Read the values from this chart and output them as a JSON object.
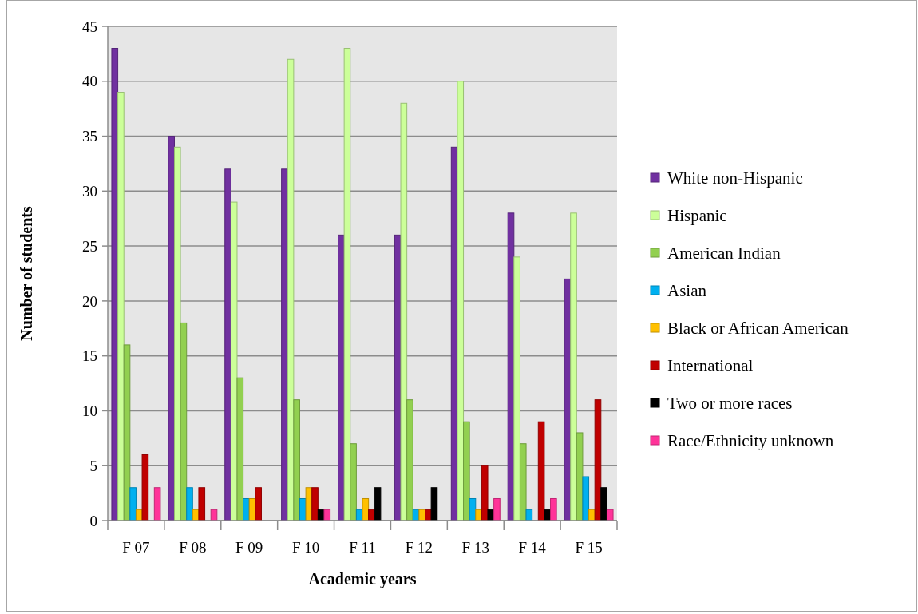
{
  "chart_data": {
    "type": "bar",
    "xlabel": "Academic years",
    "ylabel": "Number of students",
    "categories": [
      "F 07",
      "F 08",
      "F 09",
      "F 10",
      "F 11",
      "F 12",
      "F 13",
      "F 14",
      "F 15"
    ],
    "series": [
      {
        "name": "White non-Hispanic",
        "color": "#7030a0",
        "values": [
          43,
          35,
          32,
          32,
          26,
          26,
          34,
          28,
          22
        ]
      },
      {
        "name": "Hispanic",
        "color": "#ccff99",
        "values": [
          39,
          34,
          29,
          42,
          43,
          38,
          40,
          24,
          28
        ]
      },
      {
        "name": "American Indian",
        "color": "#92d050",
        "values": [
          16,
          18,
          13,
          11,
          7,
          11,
          9,
          7,
          8
        ]
      },
      {
        "name": "Asian",
        "color": "#00b0f0",
        "values": [
          3,
          3,
          2,
          2,
          1,
          1,
          2,
          1,
          4
        ]
      },
      {
        "name": "Black or African American",
        "color": "#ffc000",
        "values": [
          1,
          1,
          2,
          3,
          2,
          1,
          1,
          0,
          1
        ]
      },
      {
        "name": "International",
        "color": "#c00000",
        "values": [
          6,
          3,
          3,
          3,
          1,
          1,
          5,
          9,
          11
        ]
      },
      {
        "name": "Two or more races",
        "color": "#000000",
        "values": [
          0,
          0,
          0,
          1,
          3,
          3,
          1,
          1,
          3
        ]
      },
      {
        "name": "Race/Ethnicity unknown",
        "color": "#ff3399",
        "values": [
          3,
          1,
          0,
          1,
          0,
          0,
          2,
          2,
          1
        ]
      }
    ],
    "ylim": [
      0,
      45
    ],
    "yticks": [
      0,
      5,
      10,
      15,
      20,
      25,
      30,
      35,
      40,
      45
    ],
    "grid": "y",
    "legend": "right"
  }
}
